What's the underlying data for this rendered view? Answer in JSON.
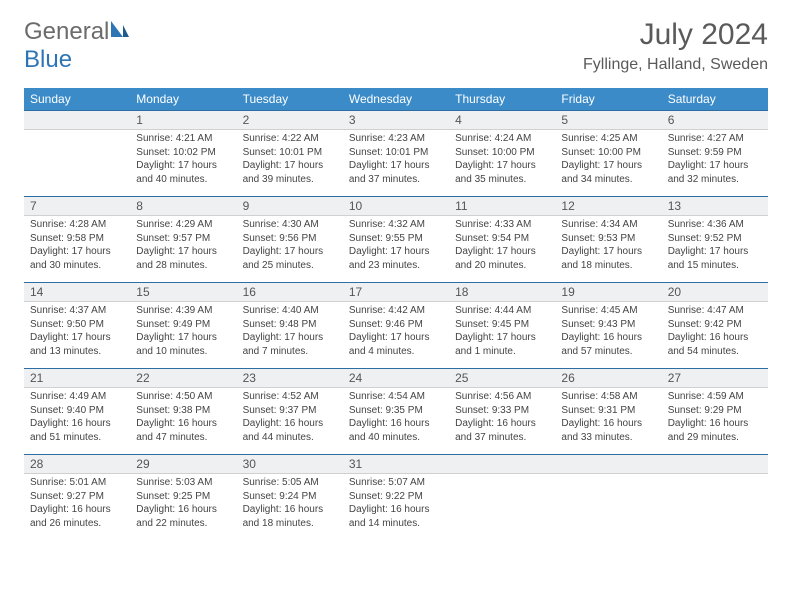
{
  "brand": {
    "part1": "General",
    "part2": "Blue"
  },
  "title": "July 2024",
  "location": "Fyllinge, Halland, Sweden",
  "colors": {
    "header_bg": "#3b8bc9",
    "header_text": "#ffffff",
    "daynum_bg": "#eef0f2",
    "border_top": "#2e6da4",
    "logo_gray": "#6b6b6b",
    "logo_blue": "#2e75b6",
    "text": "#444444"
  },
  "weekdays": [
    "Sunday",
    "Monday",
    "Tuesday",
    "Wednesday",
    "Thursday",
    "Friday",
    "Saturday"
  ],
  "weeks": [
    [
      null,
      {
        "n": "1",
        "sr": "4:21 AM",
        "ss": "10:02 PM",
        "dl": "17 hours and 40 minutes."
      },
      {
        "n": "2",
        "sr": "4:22 AM",
        "ss": "10:01 PM",
        "dl": "17 hours and 39 minutes."
      },
      {
        "n": "3",
        "sr": "4:23 AM",
        "ss": "10:01 PM",
        "dl": "17 hours and 37 minutes."
      },
      {
        "n": "4",
        "sr": "4:24 AM",
        "ss": "10:00 PM",
        "dl": "17 hours and 35 minutes."
      },
      {
        "n": "5",
        "sr": "4:25 AM",
        "ss": "10:00 PM",
        "dl": "17 hours and 34 minutes."
      },
      {
        "n": "6",
        "sr": "4:27 AM",
        "ss": "9:59 PM",
        "dl": "17 hours and 32 minutes."
      }
    ],
    [
      {
        "n": "7",
        "sr": "4:28 AM",
        "ss": "9:58 PM",
        "dl": "17 hours and 30 minutes."
      },
      {
        "n": "8",
        "sr": "4:29 AM",
        "ss": "9:57 PM",
        "dl": "17 hours and 28 minutes."
      },
      {
        "n": "9",
        "sr": "4:30 AM",
        "ss": "9:56 PM",
        "dl": "17 hours and 25 minutes."
      },
      {
        "n": "10",
        "sr": "4:32 AM",
        "ss": "9:55 PM",
        "dl": "17 hours and 23 minutes."
      },
      {
        "n": "11",
        "sr": "4:33 AM",
        "ss": "9:54 PM",
        "dl": "17 hours and 20 minutes."
      },
      {
        "n": "12",
        "sr": "4:34 AM",
        "ss": "9:53 PM",
        "dl": "17 hours and 18 minutes."
      },
      {
        "n": "13",
        "sr": "4:36 AM",
        "ss": "9:52 PM",
        "dl": "17 hours and 15 minutes."
      }
    ],
    [
      {
        "n": "14",
        "sr": "4:37 AM",
        "ss": "9:50 PM",
        "dl": "17 hours and 13 minutes."
      },
      {
        "n": "15",
        "sr": "4:39 AM",
        "ss": "9:49 PM",
        "dl": "17 hours and 10 minutes."
      },
      {
        "n": "16",
        "sr": "4:40 AM",
        "ss": "9:48 PM",
        "dl": "17 hours and 7 minutes."
      },
      {
        "n": "17",
        "sr": "4:42 AM",
        "ss": "9:46 PM",
        "dl": "17 hours and 4 minutes."
      },
      {
        "n": "18",
        "sr": "4:44 AM",
        "ss": "9:45 PM",
        "dl": "17 hours and 1 minute."
      },
      {
        "n": "19",
        "sr": "4:45 AM",
        "ss": "9:43 PM",
        "dl": "16 hours and 57 minutes."
      },
      {
        "n": "20",
        "sr": "4:47 AM",
        "ss": "9:42 PM",
        "dl": "16 hours and 54 minutes."
      }
    ],
    [
      {
        "n": "21",
        "sr": "4:49 AM",
        "ss": "9:40 PM",
        "dl": "16 hours and 51 minutes."
      },
      {
        "n": "22",
        "sr": "4:50 AM",
        "ss": "9:38 PM",
        "dl": "16 hours and 47 minutes."
      },
      {
        "n": "23",
        "sr": "4:52 AM",
        "ss": "9:37 PM",
        "dl": "16 hours and 44 minutes."
      },
      {
        "n": "24",
        "sr": "4:54 AM",
        "ss": "9:35 PM",
        "dl": "16 hours and 40 minutes."
      },
      {
        "n": "25",
        "sr": "4:56 AM",
        "ss": "9:33 PM",
        "dl": "16 hours and 37 minutes."
      },
      {
        "n": "26",
        "sr": "4:58 AM",
        "ss": "9:31 PM",
        "dl": "16 hours and 33 minutes."
      },
      {
        "n": "27",
        "sr": "4:59 AM",
        "ss": "9:29 PM",
        "dl": "16 hours and 29 minutes."
      }
    ],
    [
      {
        "n": "28",
        "sr": "5:01 AM",
        "ss": "9:27 PM",
        "dl": "16 hours and 26 minutes."
      },
      {
        "n": "29",
        "sr": "5:03 AM",
        "ss": "9:25 PM",
        "dl": "16 hours and 22 minutes."
      },
      {
        "n": "30",
        "sr": "5:05 AM",
        "ss": "9:24 PM",
        "dl": "16 hours and 18 minutes."
      },
      {
        "n": "31",
        "sr": "5:07 AM",
        "ss": "9:22 PM",
        "dl": "16 hours and 14 minutes."
      },
      null,
      null,
      null
    ]
  ],
  "labels": {
    "sunrise": "Sunrise: ",
    "sunset": "Sunset: ",
    "daylight": "Daylight: "
  }
}
